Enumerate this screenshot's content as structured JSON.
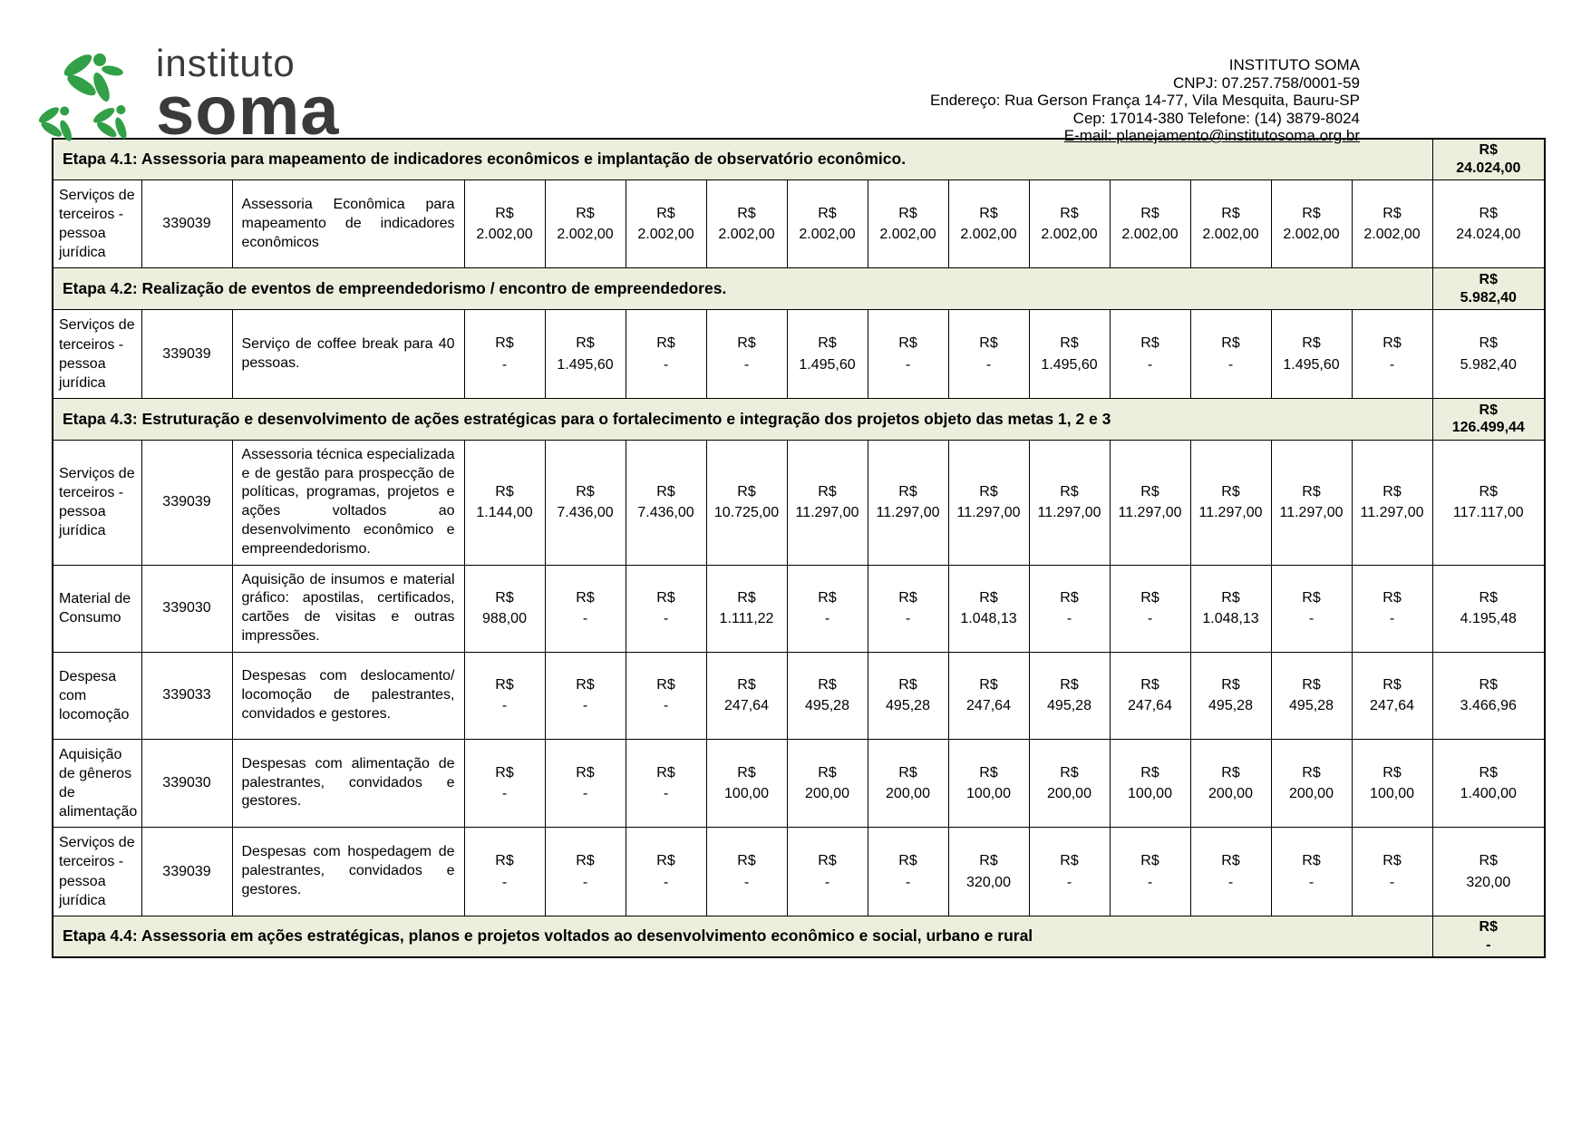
{
  "header": {
    "logo": {
      "line1": "instituto",
      "line2": "soma"
    },
    "org_name": "INSTITUTO SOMA",
    "cnpj": "CNPJ: 07.257.758/0001-59",
    "address": "Endereço: Rua Gerson França 14-77, Vila Mesquita, Bauru-SP",
    "cep_phone": "Cep: 17014-380 Telefone: (14) 3879-8024",
    "email": "E-mail: planejamento@institutosoma.org.br"
  },
  "colors": {
    "brand_green": "#31a046",
    "etapa_row_bg": "#ecefdd",
    "border": "#000000",
    "logo_text": "#3a3a3a"
  },
  "table": {
    "currency": "R$",
    "sections": [
      {
        "etapa": "Etapa 4.1: Assessoria para mapeamento de indicadores econômicos e implantação de observatório econômico.",
        "etapa_total": "24.024,00",
        "rows": [
          {
            "category": "Serviços de terceiros - pessoa jurídica",
            "code": "339039",
            "description": "Assessoria Econômica para mapeamento de indicadores econômicos",
            "values": [
              "2.002,00",
              "2.002,00",
              "2.002,00",
              "2.002,00",
              "2.002,00",
              "2.002,00",
              "2.002,00",
              "2.002,00",
              "2.002,00",
              "2.002,00",
              "2.002,00",
              "2.002,00"
            ],
            "total": "24.024,00"
          }
        ]
      },
      {
        "etapa": "Etapa 4.2: Realização de eventos de empreendedorismo / encontro de empreendedores.",
        "etapa_total": "5.982,40",
        "rows": [
          {
            "category": "Serviços de terceiros - pessoa jurídica",
            "code": "339039",
            "description": "Serviço de coffee break para 40 pessoas.",
            "values": [
              "-",
              "1.495,60",
              "-",
              "-",
              "1.495,60",
              "-",
              "-",
              "1.495,60",
              "-",
              "-",
              "1.495,60",
              "-"
            ],
            "total": "5.982,40"
          }
        ]
      },
      {
        "etapa": "Etapa 4.3: Estruturação e desenvolvimento de ações estratégicas para o fortalecimento e integração dos projetos objeto das metas 1, 2 e 3",
        "etapa_total": "126.499,44",
        "rows": [
          {
            "category": "Serviços de terceiros - pessoa jurídica",
            "code": "339039",
            "description": "Assessoria técnica especializada e de gestão para prospecção de políticas, programas, projetos e ações voltados ao desenvolvimento econômico e empreendedorismo.",
            "values": [
              "1.144,00",
              "7.436,00",
              "7.436,00",
              "10.725,00",
              "11.297,00",
              "11.297,00",
              "11.297,00",
              "11.297,00",
              "11.297,00",
              "11.297,00",
              "11.297,00",
              "11.297,00"
            ],
            "total": "117.117,00"
          },
          {
            "category": "Material de Consumo",
            "code": "339030",
            "description": "Aquisição de insumos e material gráfico: apostilas, certificados, cartões de visitas e outras impressões.",
            "values": [
              "988,00",
              "-",
              "-",
              "1.111,22",
              "-",
              "-",
              "1.048,13",
              "-",
              "-",
              "1.048,13",
              "-",
              "-"
            ],
            "total": "4.195,48"
          },
          {
            "category": "Despesa com locomoção",
            "code": "339033",
            "description": "Despesas com deslocamento/ locomoção de palestrantes, convidados e gestores.",
            "values": [
              "-",
              "-",
              "-",
              "247,64",
              "495,28",
              "495,28",
              "247,64",
              "495,28",
              "247,64",
              "495,28",
              "495,28",
              "247,64"
            ],
            "total": "3.466,96"
          },
          {
            "category": "Aquisição de gêneros de alimentação",
            "code": "339030",
            "description": "Despesas com alimentação de palestrantes, convidados e gestores.",
            "values": [
              "-",
              "-",
              "-",
              "100,00",
              "200,00",
              "200,00",
              "100,00",
              "200,00",
              "100,00",
              "200,00",
              "200,00",
              "100,00"
            ],
            "total": "1.400,00"
          },
          {
            "category": "Serviços de terceiros - pessoa jurídica",
            "code": "339039",
            "description": "Despesas com hospedagem de palestrantes, convidados e gestores.",
            "values": [
              "-",
              "-",
              "-",
              "-",
              "-",
              "-",
              "320,00",
              "-",
              "-",
              "-",
              "-",
              "-"
            ],
            "total": "320,00"
          }
        ]
      },
      {
        "etapa": "Etapa 4.4: Assessoria em ações estratégicas, planos e projetos voltados ao desenvolvimento econômico e social, urbano e rural",
        "etapa_total": "-",
        "rows": []
      }
    ]
  }
}
